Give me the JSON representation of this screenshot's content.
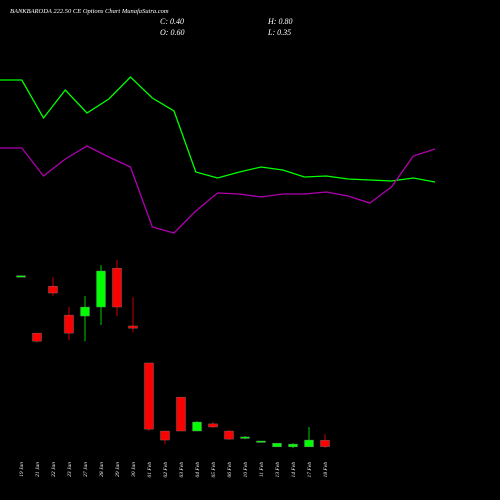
{
  "chart_data": [
    {
      "type": "candlestick",
      "title": "BANKBARODA 222.50 CE Options Chart MunafaSutra.com",
      "annotations": [
        "C: 0.40",
        "H: 0.80",
        "O: 0.60",
        "L: 0.35"
      ],
      "categories": [
        "19 Jan",
        "21 Jan",
        "22 Jan",
        "23 Jan",
        "27 Jan",
        "28 Jan",
        "29 Jan",
        "30 Jan",
        "01 Feb",
        "02 Feb",
        "03 Feb",
        "04 Feb",
        "05 Feb",
        "06 Feb",
        "10 Feb",
        "11 Feb",
        "13 Feb",
        "14 Feb",
        "17 Feb",
        "18 Feb"
      ],
      "open": [
        5.85,
        4.05,
        5.56,
        4.63,
        4.6,
        4.89,
        6.14,
        4.28,
        3.09,
        0.9,
        1.99,
        0.9,
        1.13,
        0.9,
        0.71,
        0.58,
        0.39,
        0.39,
        0.39,
        0.6
      ],
      "high": [
        5.9,
        4.05,
        5.85,
        4.89,
        5.24,
        6.24,
        6.4,
        5.21,
        3.09,
        0.9,
        1.99,
        1.22,
        1.19,
        0.93,
        0.74,
        0.58,
        0.51,
        0.51,
        1.03,
        0.8
      ],
      "low": [
        5.85,
        3.75,
        5.24,
        3.83,
        3.79,
        4.31,
        4.6,
        4.08,
        0.9,
        0.48,
        0.9,
        0.9,
        1.0,
        0.61,
        0.64,
        0.58,
        0.39,
        0.35,
        0.39,
        0.35
      ],
      "close": [
        5.9,
        3.79,
        5.34,
        4.05,
        4.89,
        6.05,
        4.89,
        4.21,
        0.96,
        0.61,
        0.9,
        1.19,
        1.03,
        0.64,
        0.71,
        0.58,
        0.51,
        0.48,
        0.61,
        0.4
      ],
      "up_color": "#00ff00",
      "down_color": "#ff0000",
      "ylim": [
        0,
        6.5
      ]
    },
    {
      "type": "line",
      "series": [
        {
          "color": "#00ff00",
          "values": [
            160,
            160,
            122,
            150,
            127,
            141,
            163,
            142,
            129,
            68,
            62,
            68,
            73,
            70,
            63,
            64,
            61,
            60,
            59,
            62,
            58
          ]
        },
        {
          "color": "#b000b0",
          "values": [
            92,
            92,
            64,
            81,
            94,
            83,
            73,
            13,
            7,
            29,
            47,
            46,
            43,
            46,
            46,
            48,
            44,
            37,
            53,
            84,
            91
          ]
        }
      ],
      "ylim": [
        0,
        180
      ]
    }
  ]
}
